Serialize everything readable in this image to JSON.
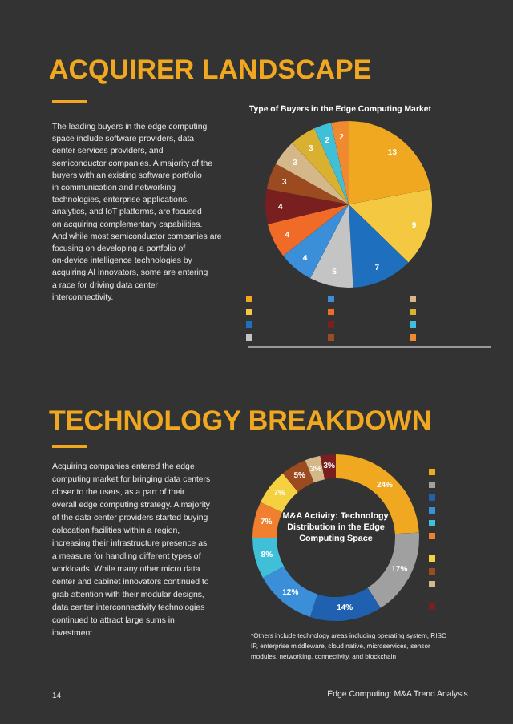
{
  "chart_data": [
    {
      "type": "pie",
      "title": "ACQUIRER LANDSCAPE",
      "subtitle": "Type of Buyers in the Edge Computing Market",
      "annotations": [
        "The leading buyers in the edge computing space include software providers, data center services providers, and semiconductor companies. A majority of the buyers with an existing software portfolio in communication and networking technologies, enterprise applications, analytics, and IoT platforms, are focused on acquiring complementary capabilities. And while most semiconductor companies are focusing on developing a portfolio of on-device intelligence technologies by acquiring AI innovators, some are entering a race for driving data center interconnectivity."
      ],
      "categories": [
        null,
        null,
        null,
        null,
        null,
        null,
        null,
        null,
        null,
        null,
        null,
        null
      ],
      "values": [
        13,
        9,
        7,
        5,
        4,
        4,
        4,
        3,
        3,
        3,
        2,
        2
      ],
      "colors": [
        "#f0a820",
        "#f5c842",
        "#1f6fbf",
        "#c4c4c4",
        "#3a8fd8",
        "#f06a28",
        "#7a1f1f",
        "#9c4a20",
        "#d4b88a",
        "#d9b030",
        "#40c0d8",
        "#f08a30"
      ],
      "data_labels": true
    },
    {
      "type": "donut",
      "title": "TECHNOLOGY BREAKDOWN",
      "subtitle": "M&A Activity: Technology Distribution in the Edge Computing Space",
      "annotations": [
        "Acquiring companies entered the edge computing market for bringing data centers closer to the users, as a part of their overall edge computing strategy. A majority of the data center providers started buying colocation facilities within a region, increasing their infrastructure presence as a measure for handling different types of workloads. While many other micro data center and cabinet innovators continued to grab attention with their modular designs, data center interconnectivity technologies continued to attract large sums in investment.",
        "*Others include technology areas including operating system, RISC IP, enterprise middleware, cloud native, microservices, sensor modules, networking, connectivity, and blockchain",
        "14",
        "Edge Computing: M&A Trend Analysis"
      ],
      "categories": [
        null,
        null,
        null,
        null,
        null,
        null,
        null,
        null,
        null,
        null
      ],
      "values": [
        24,
        17,
        14,
        12,
        8,
        7,
        7,
        5,
        3,
        3
      ],
      "value_labels": [
        "24%",
        "17%",
        "14%",
        "12%",
        "8%",
        "7%",
        "7%",
        "5%",
        "3%",
        "3%"
      ],
      "colors": [
        "#f0a820",
        "#a0a0a0",
        "#2060b0",
        "#3a8fd8",
        "#40c0d8",
        "#f08030",
        "#f5d040",
        "#9c4a20",
        "#d4b88a",
        "#7a1f1f"
      ]
    }
  ]
}
